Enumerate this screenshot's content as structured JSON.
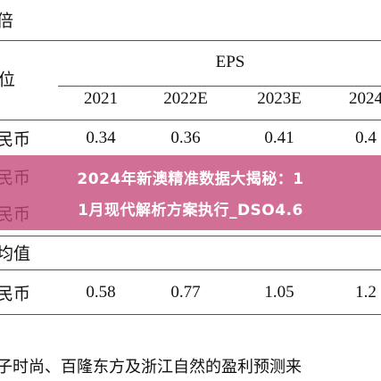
{
  "table": {
    "unit_header": "倍",
    "unit_label": "位",
    "group_header": "EPS",
    "columns": [
      "2021",
      "2022E",
      "2023E",
      "2024"
    ],
    "rows": [
      {
        "label": "民币",
        "cells": [
          "0.34",
          "0.36",
          "0.41",
          "0.4"
        ]
      },
      {
        "label": "民币"
      },
      {
        "label": "民币"
      },
      {
        "label": "均值"
      },
      {
        "label": "民币",
        "cells": [
          "0.58",
          "0.77",
          "1.05",
          "1.2"
        ]
      }
    ],
    "footnote": "子时尚、百隆东方及浙江自然的盈利预测来"
  },
  "banner": {
    "lines": [
      "2024年新澳精准数据大揭秘：1",
      "1月现代解析方案执行_DSO4.6"
    ]
  }
}
